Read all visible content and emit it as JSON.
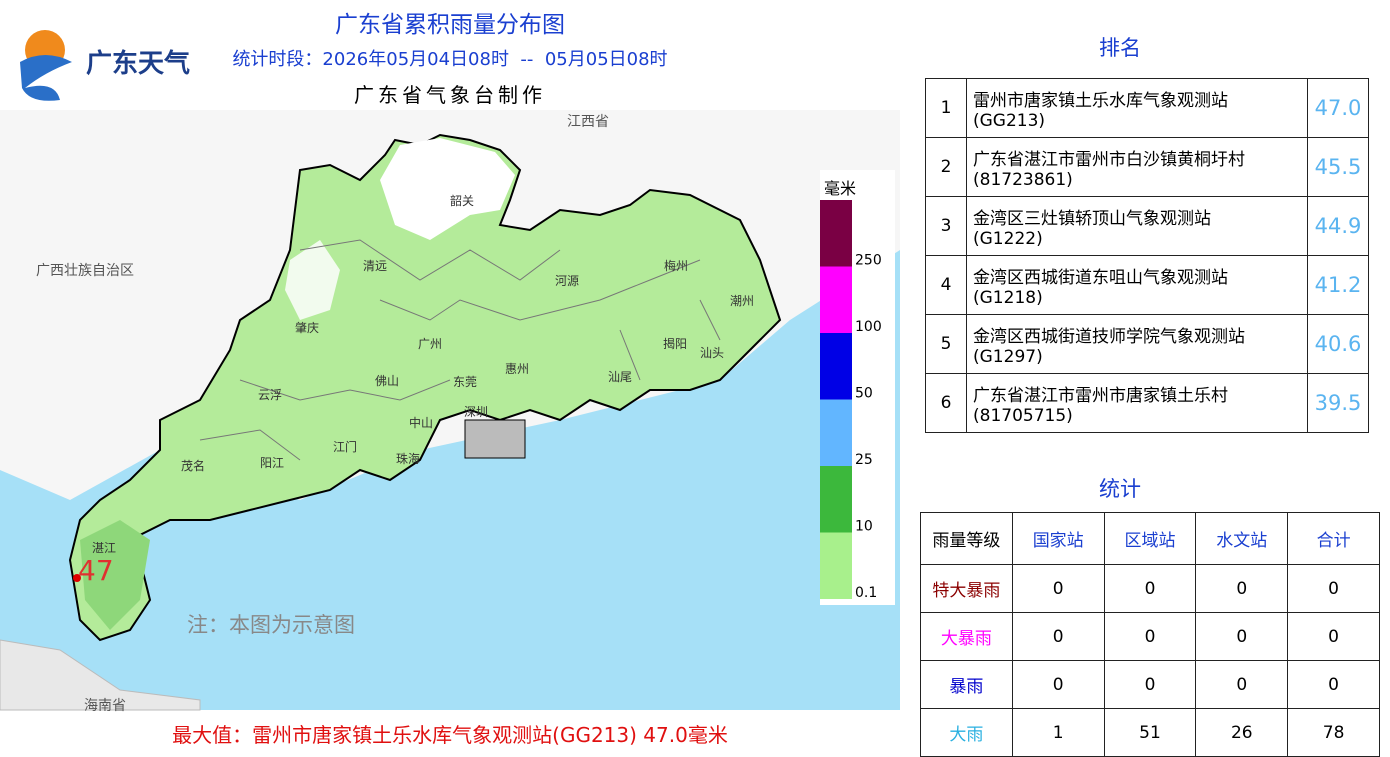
{
  "header": {
    "logo": "广东天气",
    "title": "广东省累积雨量分布图",
    "period": "统计时段：2026年05月04日08时  --  05月05日08时",
    "producer": "广东省气象台制作"
  },
  "map": {
    "neighbors": [
      "江西省",
      "广西壮族自治区",
      "海南省"
    ],
    "cities": [
      "韶关",
      "清远",
      "河源",
      "梅州",
      "潮州",
      "肇庆",
      "广州",
      "惠州",
      "揭阳",
      "汕头",
      "佛山",
      "东莞",
      "汕尾",
      "云浮",
      "深圳",
      "中山",
      "江门",
      "茂名",
      "阳江",
      "珠海",
      "湛江"
    ],
    "legend": {
      "unit": "毫米",
      "levels": [
        {
          "value": 250,
          "color": "#7a0044"
        },
        {
          "value": 100,
          "color": "#ff00ff"
        },
        {
          "value": 50,
          "color": "#0000e6"
        },
        {
          "value": 25,
          "color": "#62b6ff"
        },
        {
          "value": 10,
          "color": "#3cb83c"
        },
        {
          "value": 0.1,
          "color": "#a8f08c"
        }
      ]
    },
    "max_marker": "47",
    "note": "注：本图为示意图",
    "max_text": "最大值：雷州市唐家镇土乐水库气象观测站(GG213) 47.0毫米"
  },
  "ranking": {
    "title": "排名",
    "rows": [
      {
        "rank": "1",
        "station": "雷州市唐家镇土乐水库气象观测站",
        "code": "(GG213)",
        "value": "47.0"
      },
      {
        "rank": "2",
        "station": "广东省湛江市雷州市白沙镇黄桐圩村",
        "code": "(81723861)",
        "value": "45.5"
      },
      {
        "rank": "3",
        "station": "金湾区三灶镇轿顶山气象观测站",
        "code": "(G1222)",
        "value": "44.9"
      },
      {
        "rank": "4",
        "station": "金湾区西城街道东咀山气象观测站",
        "code": "(G1218)",
        "value": "41.2"
      },
      {
        "rank": "5",
        "station": "金湾区西城街道技师学院气象观测站",
        "code": "(G1297)",
        "value": "40.6"
      },
      {
        "rank": "6",
        "station": "广东省湛江市雷州市唐家镇土乐村",
        "code": "(81705715)",
        "value": "39.5"
      }
    ]
  },
  "stats": {
    "title": "统计",
    "header": [
      "雨量等级",
      "国家站",
      "区域站",
      "水文站",
      "合计"
    ],
    "rows": [
      {
        "level": "特大暴雨",
        "counts": [
          "0",
          "0",
          "0",
          "0"
        ]
      },
      {
        "level": "大暴雨",
        "counts": [
          "0",
          "0",
          "0",
          "0"
        ]
      },
      {
        "level": "暴雨",
        "counts": [
          "0",
          "0",
          "0",
          "0"
        ]
      },
      {
        "level": "大雨",
        "counts": [
          "1",
          "51",
          "26",
          "78"
        ]
      }
    ]
  }
}
